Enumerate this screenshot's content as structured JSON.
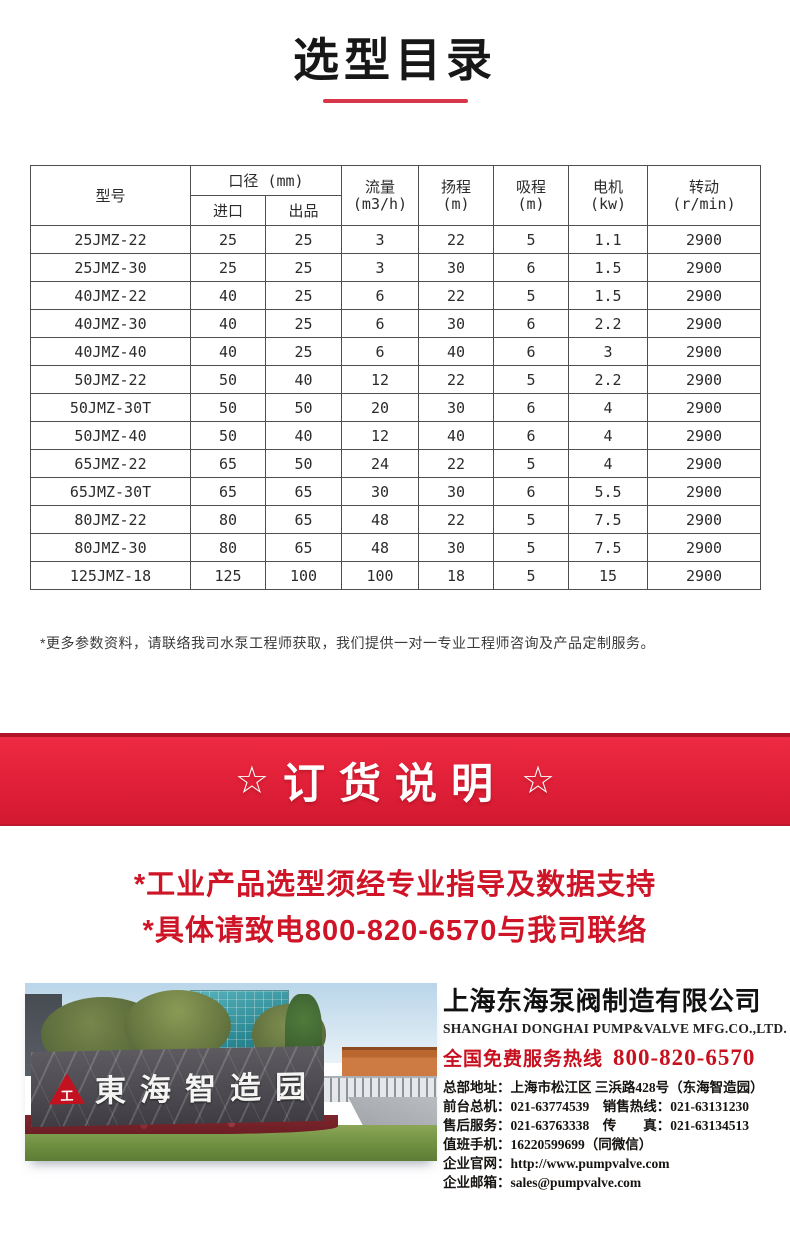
{
  "page": {
    "title": "选型目录"
  },
  "table": {
    "headers": {
      "model": "型号",
      "diameter": "口径 (mm)",
      "inlet": "进口",
      "outlet": "出品",
      "flow": {
        "label": "流量",
        "unit": "(m3/h)"
      },
      "head": {
        "label": "扬程",
        "unit": "(m)"
      },
      "suction": {
        "label": "吸程",
        "unit": "(m)"
      },
      "motor": {
        "label": "电机",
        "unit": "(kw)"
      },
      "speed": {
        "label": "转动",
        "unit": "(r/min)"
      }
    },
    "rows": [
      [
        "25JMZ-22",
        "25",
        "25",
        "3",
        "22",
        "5",
        "1.1",
        "2900"
      ],
      [
        "25JMZ-30",
        "25",
        "25",
        "3",
        "30",
        "6",
        "1.5",
        "2900"
      ],
      [
        "40JMZ-22",
        "40",
        "25",
        "6",
        "22",
        "5",
        "1.5",
        "2900"
      ],
      [
        "40JMZ-30",
        "40",
        "25",
        "6",
        "30",
        "6",
        "2.2",
        "2900"
      ],
      [
        "40JMZ-40",
        "40",
        "25",
        "6",
        "40",
        "6",
        "3",
        "2900"
      ],
      [
        "50JMZ-22",
        "50",
        "40",
        "12",
        "22",
        "5",
        "2.2",
        "2900"
      ],
      [
        "50JMZ-30T",
        "50",
        "50",
        "20",
        "30",
        "6",
        "4",
        "2900"
      ],
      [
        "50JMZ-40",
        "50",
        "40",
        "12",
        "40",
        "6",
        "4",
        "2900"
      ],
      [
        "65JMZ-22",
        "65",
        "50",
        "24",
        "22",
        "5",
        "4",
        "2900"
      ],
      [
        "65JMZ-30T",
        "65",
        "65",
        "30",
        "30",
        "6",
        "5.5",
        "2900"
      ],
      [
        "80JMZ-22",
        "80",
        "65",
        "48",
        "22",
        "5",
        "7.5",
        "2900"
      ],
      [
        "80JMZ-30",
        "80",
        "65",
        "48",
        "30",
        "5",
        "7.5",
        "2900"
      ],
      [
        "125JMZ-18",
        "125",
        "100",
        "100",
        "18",
        "5",
        "15",
        "2900"
      ]
    ]
  },
  "note": "*更多参数资料，请联络我司水泵工程师获取，我们提供一对一专业工程师咨询及产品定制服务。",
  "order_section": {
    "star": "☆",
    "title": "订货说明",
    "lines": [
      "*工业产品选型须经专业指导及数据支持",
      "*具体请致电800-820-6570与我司联络"
    ]
  },
  "footer": {
    "photo_sign": "東海智造园",
    "logo_glyph": "工",
    "company_cn": "上海东海泵阀制造有限公司",
    "company_en": "SHANGHAI DONGHAI PUMP&VALVE MFG.CO.,LTD.",
    "hotline_label": "全国免费服务热线",
    "hotline_number": "800-820-6570",
    "contacts": [
      "总部地址：上海市松江区 三浜路428号（东海智造园）",
      "前台总机：021-63774539　销售热线：021-63131230",
      "售后服务：021-63763338　传　　真：021-63134513",
      "值班手机：16220599699（同微信）",
      "企业官网：http://www.pumpvalve.com",
      "企业邮箱：sales@pumpvalve.com"
    ]
  },
  "colors": {
    "accent_red": "#d81e35",
    "notice_red": "#ce1426",
    "hotline_red": "#c80f1e",
    "underline_red": "#d8374a"
  }
}
